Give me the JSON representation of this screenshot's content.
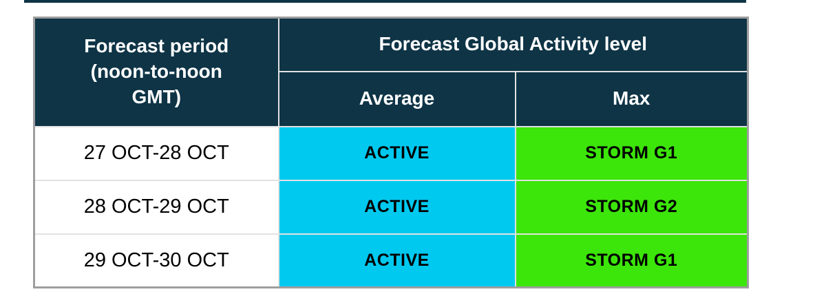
{
  "colors": {
    "header_bg": "#0E3446",
    "header_text": "#FFFFFF",
    "active_bg": "#00C9F0",
    "storm_bg": "#3CE50A",
    "cell_text": "#000000",
    "outer_border": "#9E9E9E",
    "grid_line": "#E2E2E2"
  },
  "table": {
    "period_header_lines": [
      "Forecast period",
      "(noon-to-noon",
      "GMT)"
    ],
    "activity_header": "Forecast Global Activity level",
    "sub_headers": {
      "average": "Average",
      "max": "Max"
    },
    "rows": [
      {
        "period": "27 OCT-28 OCT",
        "average": "ACTIVE",
        "max": "STORM G1"
      },
      {
        "period": "28 OCT-29 OCT",
        "average": "ACTIVE",
        "max": "STORM G2"
      },
      {
        "period": "29 OCT-30 OCT",
        "average": "ACTIVE",
        "max": "STORM G1"
      }
    ]
  }
}
